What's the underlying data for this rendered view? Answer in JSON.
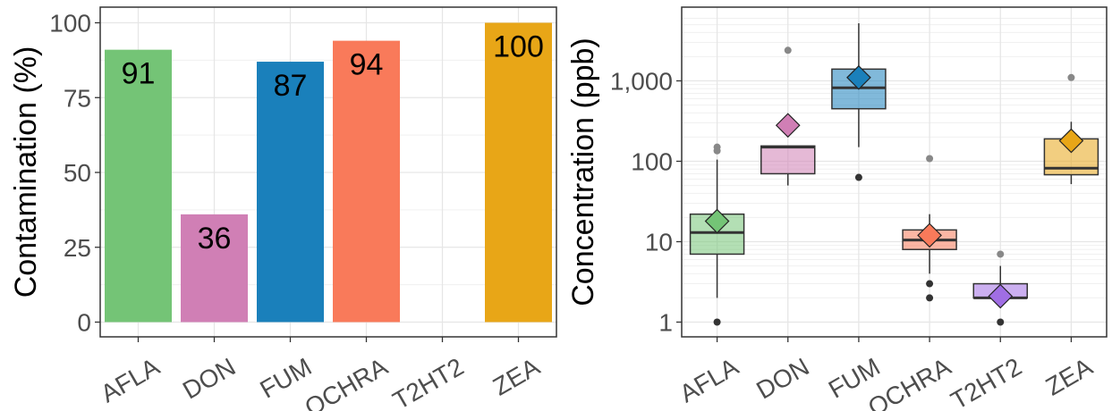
{
  "chart_data": [
    {
      "type": "bar",
      "title": "",
      "xlabel": "",
      "ylabel": "Contamination (%)",
      "ylim": [
        0,
        100
      ],
      "yticks": [
        0,
        25,
        50,
        75,
        100
      ],
      "grid": true,
      "categories": [
        "AFLA",
        "DON",
        "FUM",
        "OCHRA",
        "T2HT2",
        "ZEA"
      ],
      "values": [
        91,
        36,
        87,
        94,
        0,
        100
      ],
      "data_labels": [
        "91",
        "36",
        "87",
        "94",
        "",
        "100"
      ],
      "colors": [
        "#74c476",
        "#d07fb5",
        "#1a80bb",
        "#f97a5a",
        "#a06ee4",
        "#e8a617"
      ]
    },
    {
      "type": "box",
      "title": "",
      "xlabel": "",
      "ylabel": "Concentration (ppb)",
      "yscale": "log",
      "ylim": [
        0.75,
        7000
      ],
      "yticks": [
        1,
        10,
        100,
        1000
      ],
      "ytick_labels": [
        "1",
        "10",
        "100",
        "1,000"
      ],
      "grid": true,
      "categories": [
        "AFLA",
        "DON",
        "FUM",
        "OCHRA",
        "T2HT2",
        "ZEA"
      ],
      "colors": [
        "#74c476",
        "#d07fb5",
        "#1a80bb",
        "#f97a5a",
        "#a06ee4",
        "#e8a617"
      ],
      "boxes": [
        {
          "category": "AFLA",
          "q1": 7,
          "median": 13,
          "q3": 22,
          "whisker_low": 2,
          "whisker_high": 105,
          "mean": 18,
          "outliers": [
            1,
            135,
            150
          ]
        },
        {
          "category": "DON",
          "q1": 70,
          "median": 150,
          "q3": 155,
          "whisker_low": 50,
          "whisker_high": 155,
          "mean": 280,
          "outliers": [
            2400
          ]
        },
        {
          "category": "FUM",
          "q1": 450,
          "median": 820,
          "q3": 1400,
          "whisker_low": 150,
          "whisker_high": 5200,
          "mean": 1100,
          "outliers": [
            63
          ]
        },
        {
          "category": "OCHRA",
          "q1": 8,
          "median": 10.5,
          "q3": 14,
          "whisker_low": 4,
          "whisker_high": 22,
          "mean": 12,
          "outliers": [
            2,
            3,
            108
          ]
        },
        {
          "category": "T2HT2",
          "q1": 2,
          "median": 2,
          "q3": 3,
          "whisker_low": 2,
          "whisker_high": 5,
          "mean": 2.1,
          "outliers": [
            1,
            7
          ]
        },
        {
          "category": "ZEA",
          "q1": 68,
          "median": 82,
          "q3": 190,
          "whisker_low": 52,
          "whisker_high": 310,
          "mean": 180,
          "outliers": [
            1100
          ]
        }
      ]
    }
  ]
}
